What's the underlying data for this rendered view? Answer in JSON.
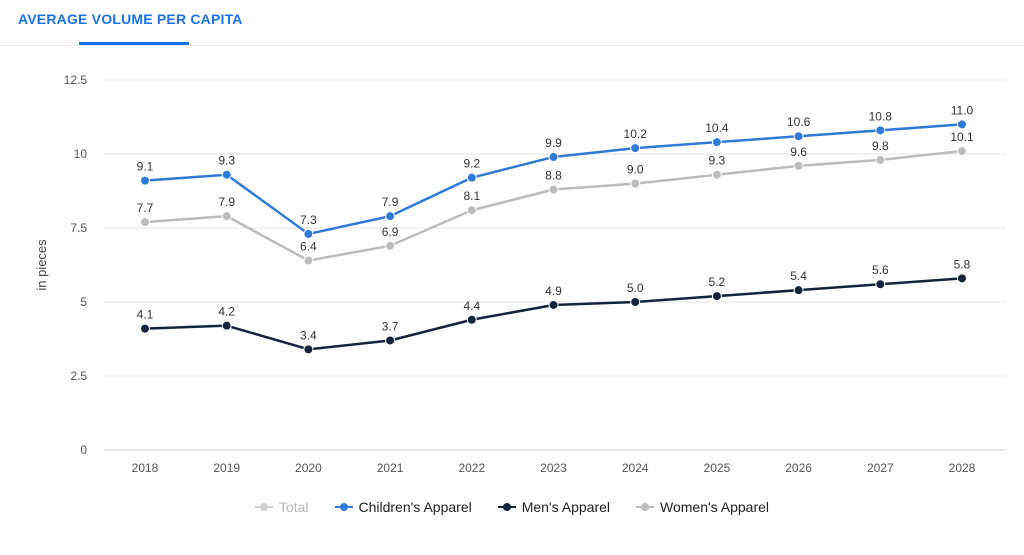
{
  "header": {
    "title": "AVERAGE VOLUME PER CAPITA"
  },
  "chart_data": {
    "type": "line",
    "title": "",
    "xlabel": "",
    "ylabel": "in pieces",
    "categories": [
      "2018",
      "2019",
      "2020",
      "2021",
      "2022",
      "2023",
      "2024",
      "2025",
      "2026",
      "2027",
      "2028"
    ],
    "ylim": [
      0,
      12.5
    ],
    "yticks": [
      0,
      2.5,
      5,
      7.5,
      10,
      12.5
    ],
    "ytick_labels": [
      "0",
      "2.5",
      "5",
      "7.5",
      "10",
      "12.5"
    ],
    "grid": true,
    "legend_position": "bottom",
    "series": [
      {
        "name": "Children's Apparel",
        "color": "#2f7ad8",
        "values": [
          9.1,
          9.3,
          7.3,
          7.9,
          9.2,
          9.9,
          10.2,
          10.4,
          10.6,
          10.8,
          11.0
        ],
        "labels": [
          "9.1",
          "9.3",
          "7.3",
          "7.9",
          "9.2",
          "9.9",
          "10.2",
          "10.4",
          "10.6",
          "10.8",
          "11.0"
        ]
      },
      {
        "name": "Men's Apparel",
        "color": "#13243b",
        "values": [
          4.1,
          4.2,
          3.4,
          3.7,
          4.4,
          4.9,
          5.0,
          5.2,
          5.4,
          5.6,
          5.8
        ],
        "labels": [
          "4.1",
          "4.2",
          "3.4",
          "3.7",
          "4.4",
          "4.9",
          "5.0",
          "5.2",
          "5.4",
          "5.6",
          "5.8"
        ]
      },
      {
        "name": "Women's Apparel",
        "color": "#bcbcbc",
        "values": [
          7.7,
          7.9,
          6.4,
          6.9,
          8.1,
          8.8,
          9.0,
          9.3,
          9.6,
          9.8,
          10.1
        ],
        "labels": [
          "7.7",
          "7.9",
          "6.4",
          "6.9",
          "8.1",
          "8.8",
          "9.0",
          "9.3",
          "9.6",
          "9.8",
          "10.1"
        ]
      }
    ],
    "legend": [
      {
        "name": "Total",
        "color": "#cfcfcf",
        "muted": true
      },
      {
        "name": "Children's Apparel",
        "color": "#2f7ad8",
        "muted": false
      },
      {
        "name": "Men's Apparel",
        "color": "#13243b",
        "muted": false
      },
      {
        "name": "Women's Apparel",
        "color": "#bcbcbc",
        "muted": false
      }
    ]
  }
}
